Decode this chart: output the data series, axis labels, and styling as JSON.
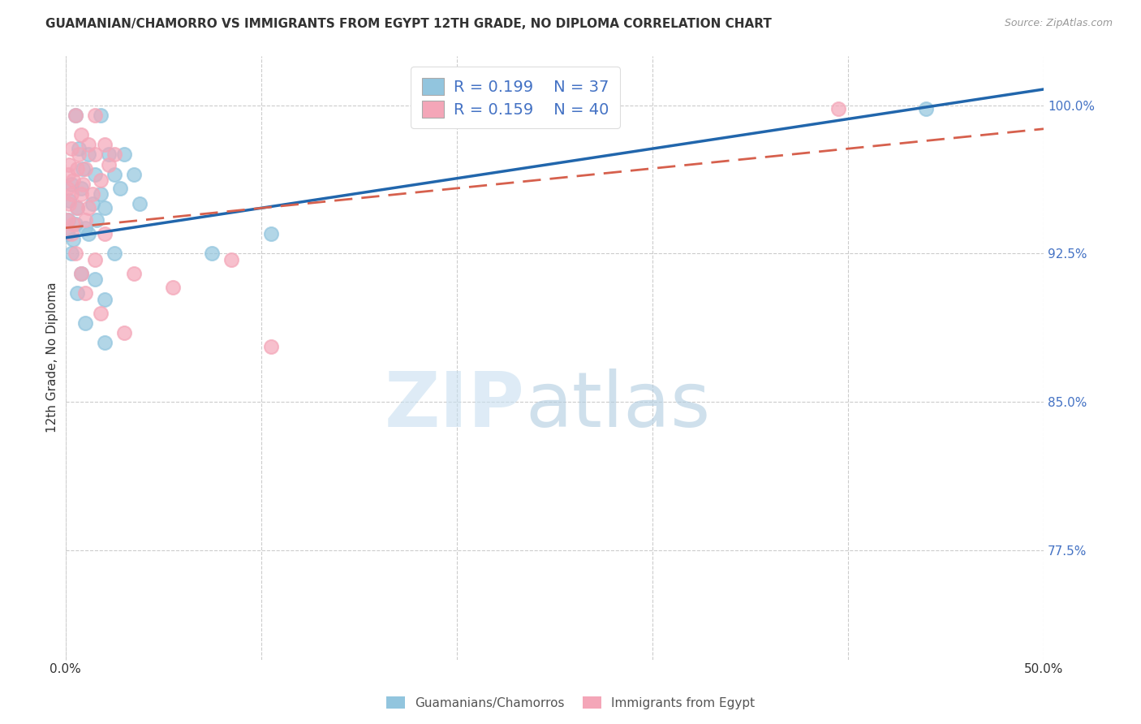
{
  "title": "GUAMANIAN/CHAMORRO VS IMMIGRANTS FROM EGYPT 12TH GRADE, NO DIPLOMA CORRELATION CHART",
  "source": "Source: ZipAtlas.com",
  "ylabel": "12th Grade, No Diploma",
  "xlim": [
    0.0,
    50.0
  ],
  "ylim": [
    72.0,
    102.5
  ],
  "ytick_positions": [
    100.0,
    92.5,
    85.0,
    77.5
  ],
  "ytick_labels": [
    "100.0%",
    "92.5%",
    "85.0%",
    "77.5%"
  ],
  "xtick_positions": [
    0,
    10,
    20,
    30,
    40,
    50
  ],
  "xtick_labels": [
    "0.0%",
    "",
    "",
    "",
    "",
    "50.0%"
  ],
  "legend_blue_R": "0.199",
  "legend_blue_N": "37",
  "legend_pink_R": "0.159",
  "legend_pink_N": "40",
  "blue_color": "#92c5de",
  "pink_color": "#f4a6b8",
  "blue_line_color": "#2166ac",
  "pink_line_color": "#d6604d",
  "blue_scatter": [
    [
      0.5,
      99.5
    ],
    [
      1.8,
      99.5
    ],
    [
      0.7,
      97.8
    ],
    [
      1.2,
      97.5
    ],
    [
      2.2,
      97.5
    ],
    [
      3.0,
      97.5
    ],
    [
      0.9,
      96.8
    ],
    [
      1.5,
      96.5
    ],
    [
      2.5,
      96.5
    ],
    [
      3.5,
      96.5
    ],
    [
      0.3,
      96.0
    ],
    [
      0.8,
      95.8
    ],
    [
      1.8,
      95.5
    ],
    [
      2.8,
      95.8
    ],
    [
      0.2,
      95.2
    ],
    [
      0.6,
      94.8
    ],
    [
      1.4,
      95.0
    ],
    [
      2.0,
      94.8
    ],
    [
      3.8,
      95.0
    ],
    [
      0.15,
      94.2
    ],
    [
      0.5,
      94.0
    ],
    [
      1.0,
      93.8
    ],
    [
      1.6,
      94.2
    ],
    [
      0.1,
      93.5
    ],
    [
      0.4,
      93.2
    ],
    [
      1.2,
      93.5
    ],
    [
      0.3,
      92.5
    ],
    [
      2.5,
      92.5
    ],
    [
      0.8,
      91.5
    ],
    [
      1.5,
      91.2
    ],
    [
      0.6,
      90.5
    ],
    [
      2.0,
      90.2
    ],
    [
      1.0,
      89.0
    ],
    [
      2.0,
      88.0
    ],
    [
      7.5,
      92.5
    ],
    [
      10.5,
      93.5
    ],
    [
      44.0,
      99.8
    ]
  ],
  "pink_scatter": [
    [
      0.5,
      99.5
    ],
    [
      1.5,
      99.5
    ],
    [
      0.8,
      98.5
    ],
    [
      1.2,
      98.0
    ],
    [
      2.0,
      98.0
    ],
    [
      0.3,
      97.8
    ],
    [
      0.7,
      97.5
    ],
    [
      1.5,
      97.5
    ],
    [
      2.5,
      97.5
    ],
    [
      0.2,
      97.0
    ],
    [
      0.6,
      96.8
    ],
    [
      1.0,
      96.8
    ],
    [
      2.2,
      97.0
    ],
    [
      0.15,
      96.5
    ],
    [
      0.4,
      96.2
    ],
    [
      0.9,
      96.0
    ],
    [
      1.8,
      96.2
    ],
    [
      0.1,
      95.8
    ],
    [
      0.3,
      95.5
    ],
    [
      0.8,
      95.5
    ],
    [
      1.4,
      95.5
    ],
    [
      0.2,
      95.0
    ],
    [
      0.6,
      94.8
    ],
    [
      1.2,
      94.8
    ],
    [
      0.1,
      94.2
    ],
    [
      0.4,
      94.0
    ],
    [
      1.0,
      94.2
    ],
    [
      0.3,
      93.5
    ],
    [
      2.0,
      93.5
    ],
    [
      0.5,
      92.5
    ],
    [
      1.5,
      92.2
    ],
    [
      0.8,
      91.5
    ],
    [
      3.5,
      91.5
    ],
    [
      1.0,
      90.5
    ],
    [
      5.5,
      90.8
    ],
    [
      1.8,
      89.5
    ],
    [
      3.0,
      88.5
    ],
    [
      8.5,
      92.2
    ],
    [
      39.5,
      99.8
    ],
    [
      10.5,
      87.8
    ]
  ],
  "blue_line": [
    [
      0.0,
      93.3
    ],
    [
      50.0,
      100.8
    ]
  ],
  "pink_line": [
    [
      0.0,
      93.8
    ],
    [
      50.0,
      98.8
    ]
  ],
  "background_color": "#ffffff",
  "grid_color": "#cccccc",
  "title_fontsize": 11,
  "watermark_zip_color": "#c8dff0",
  "watermark_atlas_color": "#b0cce0"
}
